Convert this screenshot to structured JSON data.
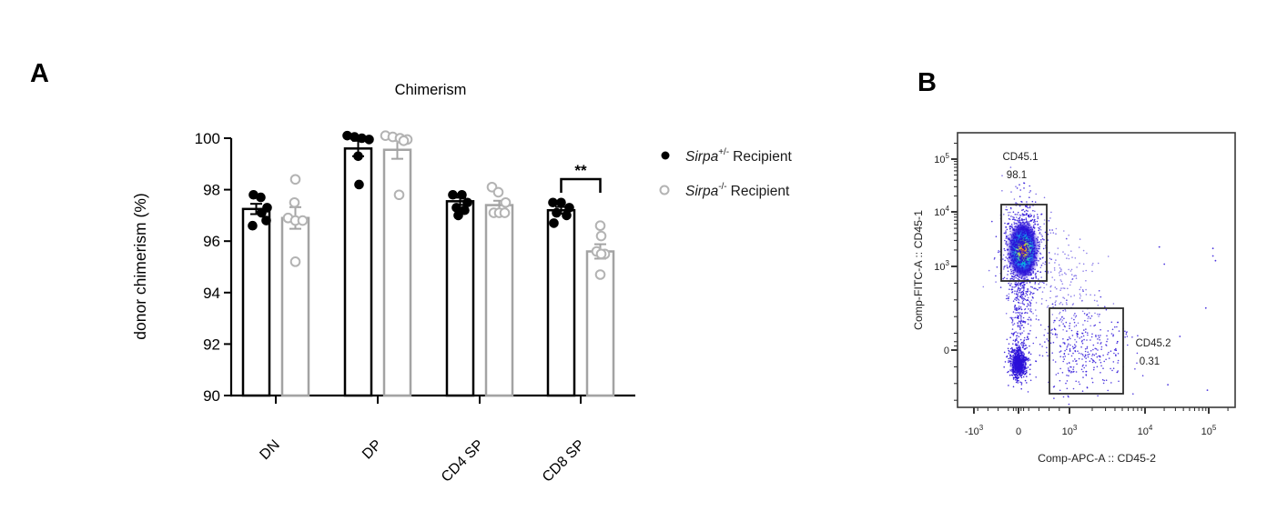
{
  "panels": {
    "a_label": "A",
    "b_label": "B"
  },
  "chart_data": [
    {
      "type": "bar",
      "title": "Chimerism",
      "xlabel": "",
      "ylabel": "donor chimerism (%)",
      "ylim": [
        90,
        100
      ],
      "yticks": [
        90,
        92,
        94,
        96,
        98,
        100
      ],
      "grid": false,
      "categories": [
        "DN",
        "DP",
        "CD4 SP",
        "CD8 SP"
      ],
      "series": [
        {
          "name": "Sirpa+/- Recipient",
          "marker": "filled-black-circle",
          "means": [
            97.25,
            99.6,
            97.55,
            97.2
          ],
          "sem": [
            0.2,
            0.3,
            0.14,
            0.13
          ],
          "points": [
            [
              97.8,
              97.7,
              97.3,
              97.1,
              96.8,
              96.6
            ],
            [
              100.1,
              100.05,
              100.0,
              99.95,
              99.3,
              98.2
            ],
            [
              97.8,
              97.8,
              97.5,
              97.3,
              97.2,
              97.0
            ],
            [
              97.5,
              97.5,
              97.3,
              97.1,
              97.0,
              96.7
            ]
          ]
        },
        {
          "name": "Sirpa-/- Recipient",
          "marker": "open-gray-circle",
          "means": [
            96.9,
            99.55,
            97.4,
            95.6
          ],
          "sem": [
            0.42,
            0.35,
            0.17,
            0.28
          ],
          "points": [
            [
              98.4,
              97.5,
              96.9,
              96.8,
              96.8,
              95.2
            ],
            [
              100.1,
              100.05,
              100.0,
              99.95,
              99.9,
              97.8
            ],
            [
              98.1,
              97.9,
              97.5,
              97.1,
              97.1,
              97.1
            ],
            [
              96.6,
              96.2,
              95.6,
              95.5,
              95.5,
              94.7
            ]
          ]
        }
      ],
      "significance": {
        "group": "CD8 SP",
        "label": "**"
      }
    },
    {
      "type": "scatter",
      "subtype": "flow-cytometry-pseudocolor",
      "xlabel": "Comp-APC-A :: CD45-2",
      "ylabel": "Comp-FITC-A :: CD45-1",
      "x_ticks": [
        "-10^3",
        "0",
        "10^3",
        "10^4",
        "10^5"
      ],
      "y_ticks": [
        "10^5",
        "10^4",
        "10^3",
        "0"
      ],
      "axis_scale": "biexponential",
      "gates": [
        {
          "name": "CD45.1",
          "value": "98.1"
        },
        {
          "name": "CD45.2",
          "value": "0.31"
        }
      ],
      "populations": [
        {
          "name": "CD45.1",
          "percent": 98.1,
          "center": {
            "x": "0",
            "y": "3e3"
          }
        },
        {
          "name": "CD45.2",
          "percent": 0.31,
          "center": {
            "x": "1e3",
            "y": "0"
          }
        }
      ]
    }
  ],
  "legend": {
    "items": [
      {
        "gene": "Sirpa",
        "sup": "+/-",
        "rest": "Recipient",
        "marker": "filled-black-circle"
      },
      {
        "gene": "Sirpa",
        "sup": "-/-",
        "rest": "Recipient",
        "marker": "open-gray-circle"
      }
    ]
  },
  "colors": {
    "series1": "#000000",
    "series2": "#a3a3a3",
    "open_marker_stroke": "#b3b3b3",
    "scatter_dot": "#2a10d8",
    "density_scale": [
      "#2d16d9",
      "#00b4ff",
      "#00d62a",
      "#ffe700",
      "#ff9100",
      "#ff1500"
    ]
  }
}
